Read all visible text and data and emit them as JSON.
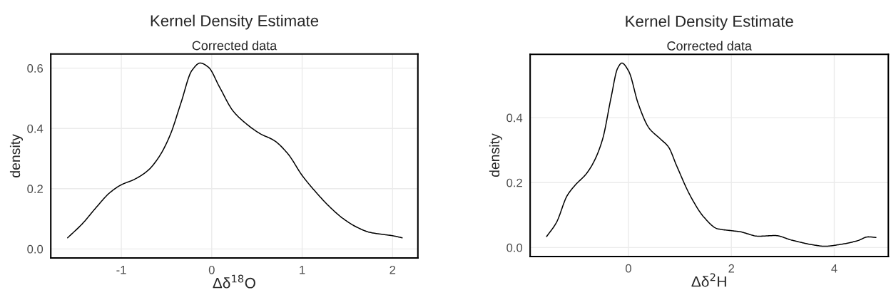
{
  "chart_data": [
    {
      "type": "line",
      "title": "Kernel Density Estimate",
      "subtitle": "Corrected data",
      "xlabel": "Δδ$^{18}$O",
      "ylabel": "density",
      "x": [
        -1.594,
        -1.43,
        -1.28,
        -1.13,
        -1.0,
        -0.855,
        -0.7,
        -0.58,
        -0.46,
        -0.34,
        -0.22,
        -0.127,
        -0.036,
        0.085,
        0.236,
        0.388,
        0.539,
        0.69,
        0.842,
        1.0,
        1.145,
        1.297,
        1.448,
        1.6,
        1.75,
        1.9,
        2.0,
        2.106
      ],
      "series": [
        {
          "color": "#000000",
          "values": [
            0.037,
            0.084,
            0.137,
            0.186,
            0.213,
            0.231,
            0.262,
            0.307,
            0.378,
            0.485,
            0.592,
            0.617,
            0.603,
            0.538,
            0.458,
            0.414,
            0.382,
            0.36,
            0.316,
            0.244,
            0.191,
            0.142,
            0.102,
            0.073,
            0.055,
            0.048,
            0.044,
            0.037
          ]
        }
      ],
      "xlim": [
        -1.78,
        2.28
      ],
      "ylim": [
        -0.03,
        0.647
      ],
      "xticks": [
        -1,
        0,
        1,
        2
      ],
      "yticks": [
        {
          "value": 0,
          "label": "0.0"
        },
        {
          "value": 0.2,
          "label": "0.2"
        },
        {
          "value": 0.4,
          "label": "0.4"
        },
        {
          "value": 0.6,
          "label": "0.6"
        }
      ],
      "grid": true,
      "marker": "none",
      "line_style": "solid"
    },
    {
      "type": "line",
      "title": "Kernel Density Estimate",
      "subtitle": "Corrected data",
      "xlabel": "Δδ$^{2}$H",
      "ylabel": "density",
      "x": [
        -1.59,
        -1.4,
        -1.19,
        -1.03,
        -0.82,
        -0.66,
        -0.5,
        -0.34,
        -0.21,
        -0.128,
        0.005,
        0.19,
        0.4,
        0.617,
        0.777,
        0.936,
        1.2,
        1.47,
        1.73,
        2.0,
        2.16,
        2.53,
        2.85,
        3.17,
        3.6,
        3.81,
        4.13,
        4.45,
        4.66,
        4.81
      ],
      "series": [
        {
          "color": "#000000",
          "values": [
            0.034,
            0.077,
            0.16,
            0.193,
            0.227,
            0.268,
            0.335,
            0.46,
            0.552,
            0.568,
            0.543,
            0.443,
            0.368,
            0.335,
            0.31,
            0.252,
            0.16,
            0.093,
            0.058,
            0.052,
            0.049,
            0.035,
            0.037,
            0.023,
            0.008,
            0.004,
            0.01,
            0.021,
            0.033,
            0.031
          ]
        }
      ],
      "xlim": [
        -1.91,
        5.05
      ],
      "ylim": [
        -0.0275,
        0.595
      ],
      "xticks": [
        0,
        2,
        4
      ],
      "yticks": [
        {
          "value": 0,
          "label": "0.0"
        },
        {
          "value": 0.2,
          "label": "0.2"
        },
        {
          "value": 0.4,
          "label": "0.4"
        }
      ],
      "grid": true,
      "marker": "none",
      "line_style": "solid"
    }
  ]
}
